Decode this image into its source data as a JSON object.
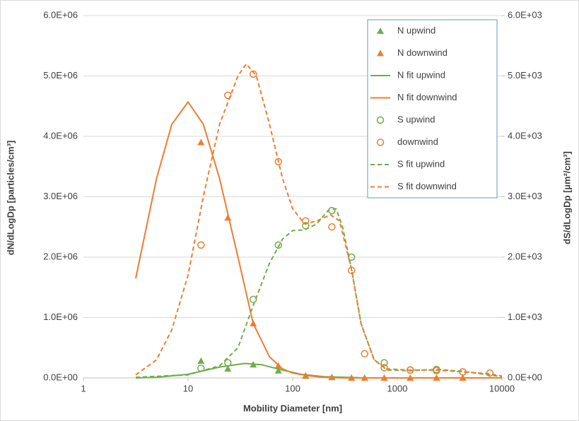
{
  "chart_data": {
    "type": "scatter",
    "xlabel": "Mobility Diameter [nm]",
    "ylabel": "dN/dLogDp [particles/cm³]",
    "y2label": "dS/dLogDp [µm²/cm³]",
    "xscale": "log",
    "xlim": [
      1,
      10000
    ],
    "xticks": [
      1,
      10,
      100,
      1000,
      10000
    ],
    "ylim": [
      0,
      6000000
    ],
    "yticks": [
      {
        "value": 0,
        "label": "0.0E+00"
      },
      {
        "value": 1000000,
        "label": "1.0E+06"
      },
      {
        "value": 2000000,
        "label": "2.0E+06"
      },
      {
        "value": 3000000,
        "label": "3.0E+06"
      },
      {
        "value": 4000000,
        "label": "4.0E+06"
      },
      {
        "value": 5000000,
        "label": "5.0E+06"
      },
      {
        "value": 6000000,
        "label": "6.0E+06"
      }
    ],
    "y2lim": [
      0,
      6000
    ],
    "y2ticks": [
      {
        "value": 0,
        "label": "0.0E+00"
      },
      {
        "value": 1000,
        "label": "1.0E+03"
      },
      {
        "value": 2000,
        "label": "2.0E+03"
      },
      {
        "value": 3000,
        "label": "3.0E+03"
      },
      {
        "value": 4000,
        "label": "4.0E+03"
      },
      {
        "value": 5000,
        "label": "5.0E+03"
      },
      {
        "value": 6000,
        "label": "6.0E+03"
      }
    ],
    "grid": true,
    "legend": "top-right",
    "series": [
      {
        "name": "N upwind",
        "color": "#70ad47",
        "marker": "triangle",
        "axis": "y",
        "x": [
          13.3,
          24,
          42,
          73,
          133,
          237,
          365,
          487,
          750,
          1330,
          2370,
          4220
        ],
        "values": [
          280000,
          150000,
          220000,
          120000,
          30000,
          10000,
          0,
          0,
          0,
          0,
          0,
          0
        ]
      },
      {
        "name": "N downwind",
        "color": "#ed7d31",
        "marker": "triangle",
        "axis": "y",
        "x": [
          13.3,
          24,
          42,
          73,
          133,
          237,
          365,
          487,
          750,
          1330,
          2370,
          4220
        ],
        "values": [
          3900000,
          2650000,
          900000,
          200000,
          40000,
          10000,
          0,
          0,
          0,
          0,
          0,
          0
        ]
      },
      {
        "name": "N fit upwind",
        "color": "#70ad47",
        "line": "solid",
        "axis": "y",
        "x": [
          3.16,
          5,
          10,
          20,
          35,
          50,
          80,
          120,
          200,
          500,
          10000
        ],
        "values": [
          0,
          10000,
          60000,
          180000,
          240000,
          220000,
          130000,
          60000,
          20000,
          0,
          0
        ]
      },
      {
        "name": "N fit downwind",
        "color": "#ed7d31",
        "line": "solid",
        "axis": "y",
        "x": [
          3.16,
          5,
          7,
          10,
          14,
          20,
          30,
          42,
          60,
          80,
          100,
          150,
          200,
          300,
          500,
          1000,
          10000
        ],
        "values": [
          1650000,
          3300000,
          4200000,
          4570000,
          4200000,
          3300000,
          2000000,
          900000,
          350000,
          150000,
          80000,
          30000,
          10000,
          0,
          0,
          0,
          0
        ]
      },
      {
        "name": "S upwind",
        "color": "#70ad47",
        "marker": "circle",
        "axis": "y2",
        "x": [
          13.3,
          24,
          42,
          73,
          133,
          237,
          365,
          750,
          1330,
          2370,
          4220
        ],
        "values": [
          160,
          250,
          1300,
          2200,
          2520,
          2770,
          2000,
          250,
          130,
          140,
          100
        ]
      },
      {
        "name": "downwind",
        "color": "#ed7d31",
        "marker": "circle",
        "axis": "y2",
        "x": [
          13.3,
          24,
          42,
          73,
          133,
          237,
          365,
          487,
          750,
          1330,
          2370,
          4220,
          7670
        ],
        "values": [
          2200,
          4680,
          5030,
          3580,
          2600,
          2500,
          1780,
          400,
          170,
          130,
          120,
          100,
          80
        ]
      },
      {
        "name": "S fit upwind",
        "color": "#70ad47",
        "line": "dashed",
        "axis": "y2",
        "x": [
          3.16,
          10,
          20,
          30,
          42,
          60,
          80,
          100,
          130,
          170,
          220,
          260,
          300,
          365,
          450,
          600,
          800,
          1300,
          2400,
          4200,
          10000
        ],
        "values": [
          10,
          50,
          200,
          500,
          1200,
          1900,
          2300,
          2440,
          2450,
          2550,
          2780,
          2800,
          2500,
          1800,
          900,
          300,
          130,
          120,
          140,
          110,
          20
        ]
      },
      {
        "name": "S fit downwind",
        "color": "#ed7d31",
        "line": "dashed",
        "axis": "y2",
        "x": [
          3.16,
          5,
          7,
          10,
          14,
          20,
          30,
          36,
          45,
          60,
          80,
          100,
          130,
          170,
          230,
          280,
          365,
          450,
          600,
          800,
          1300,
          2400,
          4200,
          7500,
          10000
        ],
        "values": [
          50,
          300,
          800,
          1700,
          3000,
          4200,
          5000,
          5200,
          5000,
          4200,
          3300,
          2800,
          2550,
          2600,
          2700,
          2600,
          1800,
          900,
          300,
          150,
          130,
          130,
          100,
          70,
          30
        ]
      }
    ]
  }
}
